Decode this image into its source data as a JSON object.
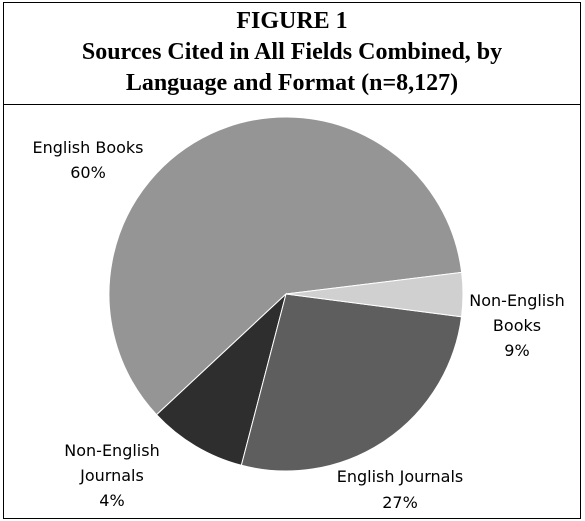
{
  "chart_data": {
    "type": "pie",
    "title_lines": [
      "FIGURE 1",
      "Sources Cited in All Fields Combined, by",
      "Language and Format (n=8,127)"
    ],
    "slices": [
      {
        "name": "English Books",
        "label_lines": [
          "English Books",
          "60%"
        ],
        "value": 60,
        "color": "#959595"
      },
      {
        "name": "Non-English Books",
        "label_lines": [
          "Non-English",
          "Books",
          "9%"
        ],
        "value": 9,
        "color": "#2e2e2e"
      },
      {
        "name": "English Journals",
        "label_lines": [
          "English Journals",
          "27%"
        ],
        "value": 27,
        "color": "#5e5e5e"
      },
      {
        "name": "Non-English Journals",
        "label_lines": [
          "Non-English",
          "Journals",
          "4%"
        ],
        "value": 4,
        "color": "#d0d0d0"
      }
    ]
  }
}
